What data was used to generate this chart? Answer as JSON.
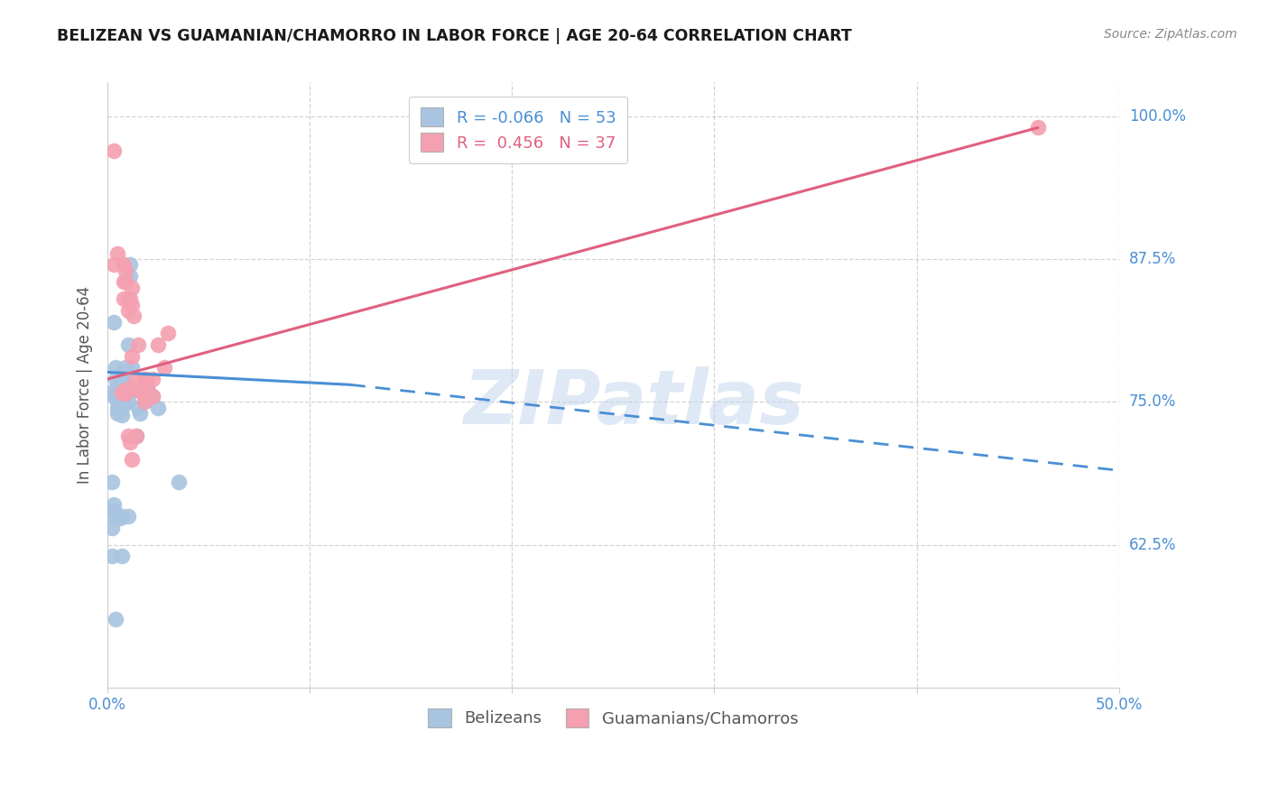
{
  "title": "BELIZEAN VS GUAMANIAN/CHAMORRO IN LABOR FORCE | AGE 20-64 CORRELATION CHART",
  "source": "Source: ZipAtlas.com",
  "ylabel": "In Labor Force | Age 20-64",
  "xlim": [
    0.0,
    0.5
  ],
  "ylim": [
    0.5,
    1.03
  ],
  "yticks": [
    0.625,
    0.75,
    0.875,
    1.0
  ],
  "ytick_labels": [
    "62.5%",
    "75.0%",
    "87.5%",
    "100.0%"
  ],
  "xticks": [
    0.0,
    0.1,
    0.2,
    0.3,
    0.4,
    0.5
  ],
  "xtick_labels_show": [
    "0.0%",
    "",
    "",
    "",
    "",
    "50.0%"
  ],
  "blue_R": -0.066,
  "blue_N": 53,
  "pink_R": 0.456,
  "pink_N": 37,
  "legend_label_blue": "Belizeans",
  "legend_label_pink": "Guamanians/Chamorros",
  "blue_color": "#a8c4e0",
  "pink_color": "#f4a0b0",
  "blue_line_solid": [
    [
      0.0,
      0.776
    ],
    [
      0.12,
      0.765
    ]
  ],
  "blue_line_dash": [
    [
      0.12,
      0.765
    ],
    [
      0.5,
      0.69
    ]
  ],
  "pink_line_solid": [
    [
      0.0,
      0.77
    ],
    [
      0.46,
      0.99
    ]
  ],
  "blue_scatter": [
    [
      0.003,
      0.76
    ],
    [
      0.004,
      0.77
    ],
    [
      0.004,
      0.78
    ],
    [
      0.005,
      0.76
    ],
    [
      0.005,
      0.75
    ],
    [
      0.005,
      0.745
    ],
    [
      0.005,
      0.74
    ],
    [
      0.006,
      0.77
    ],
    [
      0.006,
      0.76
    ],
    [
      0.006,
      0.755
    ],
    [
      0.006,
      0.75
    ],
    [
      0.006,
      0.745
    ],
    [
      0.007,
      0.775
    ],
    [
      0.007,
      0.765
    ],
    [
      0.007,
      0.76
    ],
    [
      0.007,
      0.755
    ],
    [
      0.007,
      0.745
    ],
    [
      0.007,
      0.738
    ],
    [
      0.008,
      0.775
    ],
    [
      0.008,
      0.768
    ],
    [
      0.008,
      0.758
    ],
    [
      0.008,
      0.748
    ],
    [
      0.009,
      0.78
    ],
    [
      0.009,
      0.758
    ],
    [
      0.01,
      0.8
    ],
    [
      0.01,
      0.76
    ],
    [
      0.01,
      0.75
    ],
    [
      0.011,
      0.87
    ],
    [
      0.011,
      0.86
    ],
    [
      0.012,
      0.78
    ],
    [
      0.013,
      0.76
    ],
    [
      0.014,
      0.72
    ],
    [
      0.015,
      0.745
    ],
    [
      0.016,
      0.74
    ],
    [
      0.018,
      0.75
    ],
    [
      0.02,
      0.76
    ],
    [
      0.022,
      0.755
    ],
    [
      0.025,
      0.745
    ],
    [
      0.002,
      0.68
    ],
    [
      0.003,
      0.655
    ],
    [
      0.007,
      0.65
    ],
    [
      0.01,
      0.65
    ],
    [
      0.002,
      0.615
    ],
    [
      0.007,
      0.615
    ],
    [
      0.004,
      0.56
    ],
    [
      0.035,
      0.68
    ],
    [
      0.003,
      0.82
    ],
    [
      0.002,
      0.65
    ],
    [
      0.006,
      0.648
    ],
    [
      0.003,
      0.66
    ],
    [
      0.005,
      0.756
    ],
    [
      0.003,
      0.755
    ],
    [
      0.002,
      0.64
    ]
  ],
  "pink_scatter": [
    [
      0.003,
      0.97
    ],
    [
      0.003,
      0.87
    ],
    [
      0.005,
      0.88
    ],
    [
      0.008,
      0.87
    ],
    [
      0.008,
      0.855
    ],
    [
      0.008,
      0.84
    ],
    [
      0.009,
      0.865
    ],
    [
      0.009,
      0.855
    ],
    [
      0.01,
      0.84
    ],
    [
      0.01,
      0.83
    ],
    [
      0.011,
      0.84
    ],
    [
      0.012,
      0.85
    ],
    [
      0.012,
      0.835
    ],
    [
      0.013,
      0.825
    ],
    [
      0.014,
      0.77
    ],
    [
      0.015,
      0.8
    ],
    [
      0.016,
      0.76
    ],
    [
      0.018,
      0.77
    ],
    [
      0.018,
      0.755
    ],
    [
      0.019,
      0.77
    ],
    [
      0.02,
      0.76
    ],
    [
      0.022,
      0.77
    ],
    [
      0.025,
      0.8
    ],
    [
      0.028,
      0.78
    ],
    [
      0.03,
      0.81
    ],
    [
      0.01,
      0.72
    ],
    [
      0.011,
      0.715
    ],
    [
      0.012,
      0.7
    ],
    [
      0.014,
      0.72
    ],
    [
      0.018,
      0.75
    ],
    [
      0.022,
      0.755
    ],
    [
      0.46,
      0.99
    ],
    [
      0.012,
      0.79
    ],
    [
      0.008,
      0.76
    ],
    [
      0.009,
      0.757
    ],
    [
      0.007,
      0.758
    ],
    [
      0.011,
      0.762
    ]
  ],
  "watermark": "ZIPatlas",
  "background_color": "#ffffff",
  "grid_color": "#c8c8c8"
}
